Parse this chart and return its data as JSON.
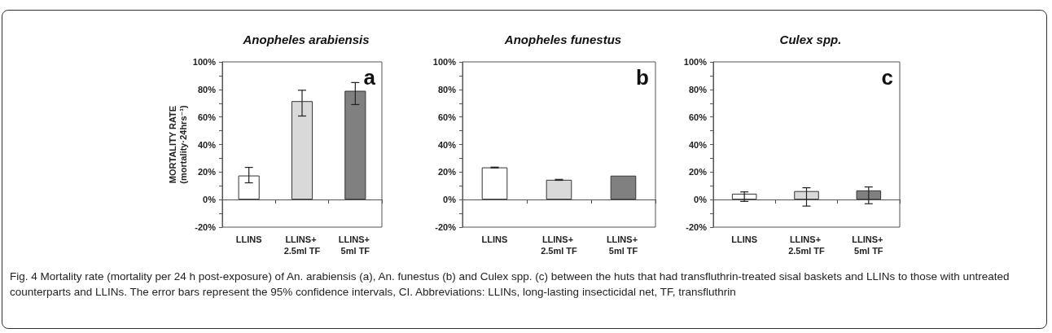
{
  "chart_data": [
    {
      "type": "bar",
      "title": "Anopheles arabiensis",
      "ylabel": "MORTALITY RATE\n(mortality·24hrs⁻¹)",
      "categories": [
        "LLINS",
        "LLINS+ 2.5ml TF",
        "LLINS+ 5ml TF"
      ],
      "values": [
        17.5,
        71.5,
        79
      ],
      "errors": [
        [
          12.2,
          23.4
        ],
        [
          60.7,
          79.4
        ],
        [
          69,
          85
        ]
      ],
      "colors": [
        "#ffffff",
        "#d9d9d9",
        "#808080"
      ],
      "ylim": [
        -20,
        100
      ],
      "yticks": [
        {
          "value": -20,
          "label": "-20%"
        },
        {
          "value": -10,
          "label": null
        },
        {
          "value": 0,
          "label": "0%"
        },
        {
          "value": 10,
          "label": null
        },
        {
          "value": 20,
          "label": "20%"
        },
        {
          "value": 30,
          "label": null
        },
        {
          "value": 40,
          "label": "40%"
        },
        {
          "value": 50,
          "label": null
        },
        {
          "value": 60,
          "label": "60%"
        },
        {
          "value": 70,
          "label": null
        },
        {
          "value": 80,
          "label": "80%"
        },
        {
          "value": 90,
          "label": null
        },
        {
          "value": 100,
          "label": "100%"
        }
      ],
      "annotations": [
        "a",
        "Fig. 4 Mortality rate (mortality per 24 h post-exposure) of An. arabiensis (a), An. funestus (b) and Culex spp. (c) between the huts that had transfluthrin-treated sisal baskets and LLINs to those with untreated counterparts and LLINs. The error bars represent the 95% confidence intervals, CI. Abbreviations: LLINs, long-lasting insecticidal net, TF, transfluthrin"
      ]
    },
    {
      "type": "bar",
      "title": "Anopheles funestus",
      "categories": [
        "LLINS",
        "LLINS+ 2.5ml TF",
        "LLINS+ 5ml TF"
      ],
      "values": [
        23.4,
        14.4,
        17.4
      ],
      "errors": [
        [
          23,
          23.6
        ],
        [
          14,
          14.7
        ],
        null
      ],
      "colors": [
        "#ffffff",
        "#d9d9d9",
        "#808080"
      ],
      "ylim": [
        -20,
        100
      ],
      "yticks": [
        {
          "value": -20,
          "label": "-20%"
        },
        {
          "value": -10,
          "label": null
        },
        {
          "value": 0,
          "label": "0%"
        },
        {
          "value": 10,
          "label": null
        },
        {
          "value": 20,
          "label": "20%"
        },
        {
          "value": 30,
          "label": null
        },
        {
          "value": 40,
          "label": "40%"
        },
        {
          "value": 50,
          "label": null
        },
        {
          "value": 60,
          "label": "60%"
        },
        {
          "value": 70,
          "label": null
        },
        {
          "value": 80,
          "label": "80%"
        },
        {
          "value": 90,
          "label": null
        },
        {
          "value": 100,
          "label": "100%"
        }
      ],
      "annotations": [
        "b"
      ]
    },
    {
      "type": "bar",
      "title": "Culex spp.",
      "categories": [
        "LLINS",
        "LLINS+ 2.5ml TF",
        "LLINS+ 5ml TF"
      ],
      "values": [
        4.3,
        6.2,
        6.7
      ],
      "errors": [
        [
          -1.3,
          5.6
        ],
        [
          -4.7,
          8.6
        ],
        [
          -3,
          9.2
        ]
      ],
      "colors": [
        "#ffffff",
        "#d9d9d9",
        "#808080"
      ],
      "ylim": [
        -20,
        100
      ],
      "yticks": [
        {
          "value": -20,
          "label": "-20%"
        },
        {
          "value": -10,
          "label": null
        },
        {
          "value": 0,
          "label": "0%"
        },
        {
          "value": 10,
          "label": null
        },
        {
          "value": 20,
          "label": "20%"
        },
        {
          "value": 30,
          "label": null
        },
        {
          "value": 40,
          "label": "40%"
        },
        {
          "value": 50,
          "label": null
        },
        {
          "value": 60,
          "label": "60%"
        },
        {
          "value": 70,
          "label": null
        },
        {
          "value": 80,
          "label": "80%"
        },
        {
          "value": 90,
          "label": null
        },
        {
          "value": 100,
          "label": "100%"
        }
      ],
      "annotations": [
        "c"
      ]
    }
  ]
}
